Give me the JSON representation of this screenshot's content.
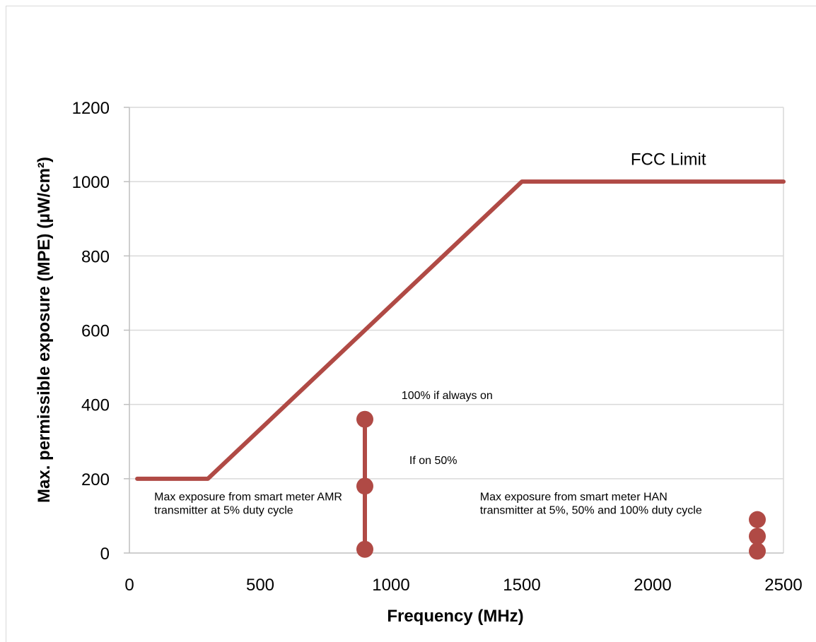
{
  "chart_data": {
    "type": "line",
    "xlabel": "Frequency (MHz)",
    "ylabel": "Max. permissible exposure (MPE) (µW/cm²)",
    "xlim": [
      0,
      2500
    ],
    "ylim": [
      0,
      1200
    ],
    "xticks": [
      0,
      500,
      1000,
      1500,
      2000,
      2500
    ],
    "yticks": [
      0,
      200,
      400,
      600,
      800,
      1000,
      1200
    ],
    "grid": "horizontal",
    "colors": {
      "series": "#b04a45",
      "grid": "#d9d9d9",
      "axis": "#bfbfbf"
    },
    "series": [
      {
        "name": "FCC Limit",
        "x": [
          30,
          300,
          1500,
          2500
        ],
        "y": [
          200,
          200,
          1000,
          1000
        ]
      },
      {
        "name": "",
        "x": [
          900,
          900,
          900
        ],
        "y": [
          10,
          180,
          360
        ]
      },
      {
        "name": "",
        "x": [
          2400,
          2400,
          2400
        ],
        "y": [
          5,
          45,
          90
        ]
      }
    ],
    "annotations": [
      {
        "key": "fcc",
        "text": "FCC Limit",
        "x": 2060,
        "y": 1045
      },
      {
        "key": "always_on",
        "text": "100% if always on",
        "x": 1040,
        "y": 415
      },
      {
        "key": "on50",
        "text": "If on 50%",
        "x": 1070,
        "y": 240
      },
      {
        "key": "amr1",
        "text": "Max exposure from smart meter AMR",
        "x": 95,
        "y": 142
      },
      {
        "key": "amr2",
        "text": "transmitter at 5% duty cycle",
        "x": 95,
        "y": 106
      },
      {
        "key": "han1",
        "text": "Max exposure from smart meter HAN",
        "x": 1340,
        "y": 142
      },
      {
        "key": "han2",
        "text": "transmitter at 5%, 50% and 100% duty cycle",
        "x": 1340,
        "y": 106
      }
    ]
  }
}
